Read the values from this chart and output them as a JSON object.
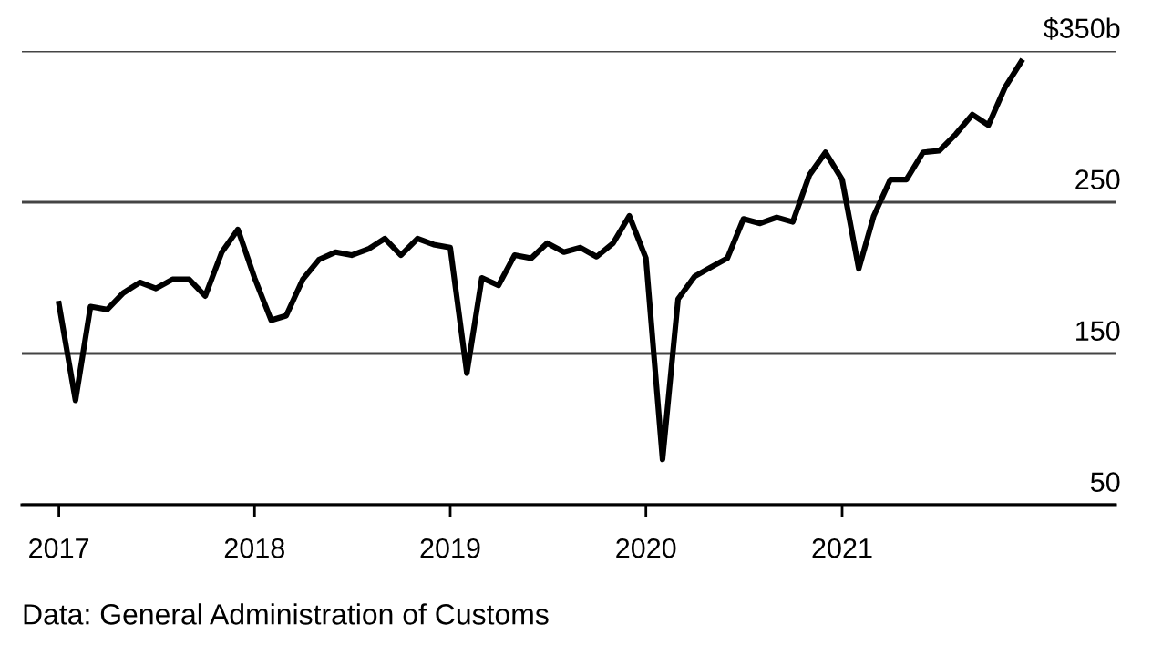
{
  "chart_data": {
    "type": "line",
    "x": [
      "2017-01",
      "2017-02",
      "2017-03",
      "2017-04",
      "2017-05",
      "2017-06",
      "2017-07",
      "2017-08",
      "2017-09",
      "2017-10",
      "2017-11",
      "2017-12",
      "2018-01",
      "2018-02",
      "2018-03",
      "2018-04",
      "2018-05",
      "2018-06",
      "2018-07",
      "2018-08",
      "2018-09",
      "2018-10",
      "2018-11",
      "2018-12",
      "2019-01",
      "2019-02",
      "2019-03",
      "2019-04",
      "2019-05",
      "2019-06",
      "2019-07",
      "2019-08",
      "2019-09",
      "2019-10",
      "2019-11",
      "2019-12",
      "2020-01",
      "2020-02",
      "2020-03",
      "2020-04",
      "2020-05",
      "2020-06",
      "2020-07",
      "2020-08",
      "2020-09",
      "2020-10",
      "2020-11",
      "2020-12",
      "2021-01",
      "2021-02",
      "2021-03",
      "2021-04",
      "2021-05",
      "2021-06",
      "2021-07",
      "2021-08",
      "2021-09",
      "2021-10",
      "2021-11",
      "2021-12"
    ],
    "series": [
      {
        "color": "#000000",
        "values": [
          183,
          119,
          181,
          179,
          190,
          197,
          193,
          199,
          199,
          188,
          217,
          232,
          200,
          172,
          175,
          199,
          212,
          217,
          215,
          219,
          226,
          215,
          226,
          222,
          220,
          137,
          200,
          195,
          215,
          213,
          223,
          217,
          220,
          214,
          223,
          241,
          213,
          80,
          186,
          201,
          207,
          213,
          239,
          236,
          240,
          237,
          268,
          283,
          265,
          206,
          241,
          265,
          265,
          283,
          284,
          295,
          308,
          301,
          326,
          343
        ]
      }
    ],
    "xlim": [
      "2016-10-24",
      "2022-05-26"
    ],
    "xticks": [
      {
        "value": "2017-01-01",
        "label": "2017"
      },
      {
        "value": "2018-01-01",
        "label": "2018"
      },
      {
        "value": "2019-01-01",
        "label": "2019"
      },
      {
        "value": "2020-01-01",
        "label": "2020"
      },
      {
        "value": "2021-01-01",
        "label": "2021"
      }
    ],
    "ylim": [
      50,
      350
    ],
    "yticks": [
      50,
      150,
      250,
      {
        "value": 350,
        "label": "$350b"
      }
    ],
    "grid": "y",
    "line_style": "solid",
    "annotations": [
      "Data: General Administration of Customs"
    ]
  }
}
